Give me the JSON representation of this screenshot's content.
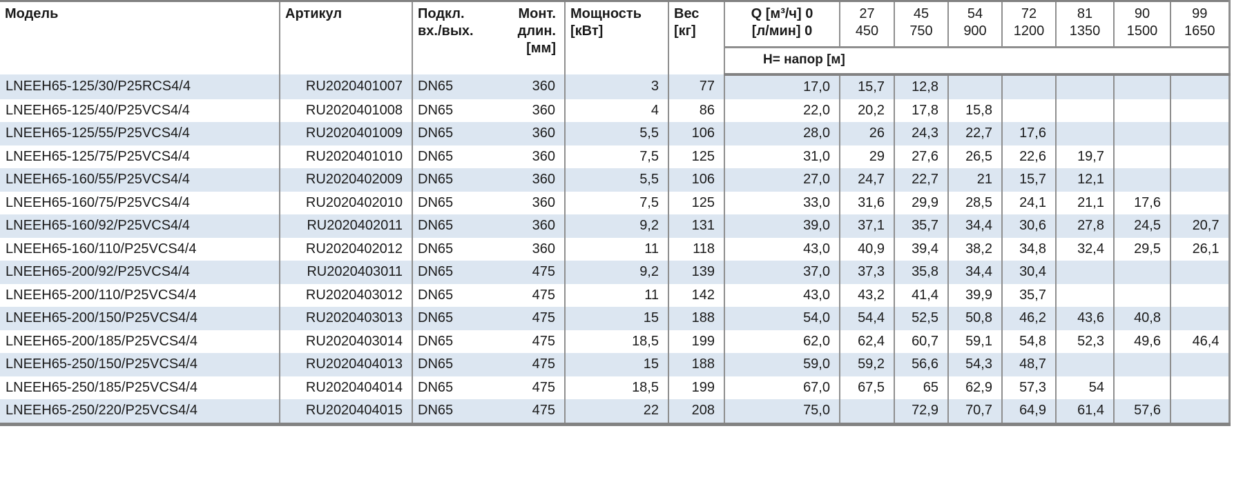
{
  "table": {
    "columns": {
      "model": "Модель",
      "article": "Артикул",
      "connection_line1": "Подкл.",
      "connection_line2": "вх./вых.",
      "mount_line1": "Монт.",
      "mount_line2": "длин.",
      "mount_line3": "[мм]",
      "power_line1": "Мощность",
      "power_line2": "[кВт]",
      "weight_line1": "Вес",
      "weight_line2": "[кг]",
      "q_line1": "Q [м³/ч] 0",
      "q_line2": "[л/мин] 0",
      "head_label": "Н= напор [м]"
    },
    "q_columns": [
      {
        "m3h": "27",
        "lmin": "450"
      },
      {
        "m3h": "45",
        "lmin": "750"
      },
      {
        "m3h": "54",
        "lmin": "900"
      },
      {
        "m3h": "72",
        "lmin": "1200"
      },
      {
        "m3h": "81",
        "lmin": "1350"
      },
      {
        "m3h": "90",
        "lmin": "1500"
      },
      {
        "m3h": "99",
        "lmin": "1650"
      }
    ],
    "rows": [
      {
        "model": "LNEEH65-125/30/P25RCS4/4",
        "article": "RU2020401007",
        "connection": "DN65",
        "mount_length": "360",
        "power": "3",
        "weight": "77",
        "heads": [
          "17,0",
          "15,7",
          "12,8",
          "",
          "",
          "",
          "",
          ""
        ]
      },
      {
        "model": "LNEEH65-125/40/P25VCS4/4",
        "article": "RU2020401008",
        "connection": "DN65",
        "mount_length": "360",
        "power": "4",
        "weight": "86",
        "heads": [
          "22,0",
          "20,2",
          "17,8",
          "15,8",
          "",
          "",
          "",
          ""
        ]
      },
      {
        "model": "LNEEH65-125/55/P25VCS4/4",
        "article": "RU2020401009",
        "connection": "DN65",
        "mount_length": "360",
        "power": "5,5",
        "weight": "106",
        "heads": [
          "28,0",
          "26",
          "24,3",
          "22,7",
          "17,6",
          "",
          "",
          ""
        ]
      },
      {
        "model": "LNEEH65-125/75/P25VCS4/4",
        "article": "RU2020401010",
        "connection": "DN65",
        "mount_length": "360",
        "power": "7,5",
        "weight": "125",
        "heads": [
          "31,0",
          "29",
          "27,6",
          "26,5",
          "22,6",
          "19,7",
          "",
          ""
        ]
      },
      {
        "model": "LNEEH65-160/55/P25VCS4/4",
        "article": "RU2020402009",
        "connection": "DN65",
        "mount_length": "360",
        "power": "5,5",
        "weight": "106",
        "heads": [
          "27,0",
          "24,7",
          "22,7",
          "21",
          "15,7",
          "12,1",
          "",
          ""
        ]
      },
      {
        "model": "LNEEH65-160/75/P25VCS4/4",
        "article": "RU2020402010",
        "connection": "DN65",
        "mount_length": "360",
        "power": "7,5",
        "weight": "125",
        "heads": [
          "33,0",
          "31,6",
          "29,9",
          "28,5",
          "24,1",
          "21,1",
          "17,6",
          ""
        ]
      },
      {
        "model": "LNEEH65-160/92/P25VCS4/4",
        "article": "RU2020402011",
        "connection": "DN65",
        "mount_length": "360",
        "power": "9,2",
        "weight": "131",
        "heads": [
          "39,0",
          "37,1",
          "35,7",
          "34,4",
          "30,6",
          "27,8",
          "24,5",
          "20,7"
        ]
      },
      {
        "model": "LNEEH65-160/110/P25VCS4/4",
        "article": "RU2020402012",
        "connection": "DN65",
        "mount_length": "360",
        "power": "11",
        "weight": "118",
        "heads": [
          "43,0",
          "40,9",
          "39,4",
          "38,2",
          "34,8",
          "32,4",
          "29,5",
          "26,1"
        ]
      },
      {
        "model": "LNEEH65-200/92/P25VCS4/4",
        "article": "RU2020403011",
        "connection": "DN65",
        "mount_length": "475",
        "power": "9,2",
        "weight": "139",
        "heads": [
          "37,0",
          "37,3",
          "35,8",
          "34,4",
          "30,4",
          "",
          "",
          ""
        ]
      },
      {
        "model": "LNEEH65-200/110/P25VCS4/4",
        "article": "RU2020403012",
        "connection": "DN65",
        "mount_length": "475",
        "power": "11",
        "weight": "142",
        "heads": [
          "43,0",
          "43,2",
          "41,4",
          "39,9",
          "35,7",
          "",
          "",
          ""
        ]
      },
      {
        "model": "LNEEH65-200/150/P25VCS4/4",
        "article": "RU2020403013",
        "connection": "DN65",
        "mount_length": "475",
        "power": "15",
        "weight": "188",
        "heads": [
          "54,0",
          "54,4",
          "52,5",
          "50,8",
          "46,2",
          "43,6",
          "40,8",
          ""
        ]
      },
      {
        "model": "LNEEH65-200/185/P25VCS4/4",
        "article": "RU2020403014",
        "connection": "DN65",
        "mount_length": "475",
        "power": "18,5",
        "weight": "199",
        "heads": [
          "62,0",
          "62,4",
          "60,7",
          "59,1",
          "54,8",
          "52,3",
          "49,6",
          "46,4"
        ]
      },
      {
        "model": "LNEEH65-250/150/P25VCS4/4",
        "article": "RU2020404013",
        "connection": "DN65",
        "mount_length": "475",
        "power": "15",
        "weight": "188",
        "heads": [
          "59,0",
          "59,2",
          "56,6",
          "54,3",
          "48,7",
          "",
          "",
          ""
        ]
      },
      {
        "model": "LNEEH65-250/185/P25VCS4/4",
        "article": "RU2020404014",
        "connection": "DN65",
        "mount_length": "475",
        "power": "18,5",
        "weight": "199",
        "heads": [
          "67,0",
          "67,5",
          "65",
          "62,9",
          "57,3",
          "54",
          "",
          ""
        ]
      },
      {
        "model": "LNEEH65-250/220/P25VCS4/4",
        "article": "RU2020404015",
        "connection": "DN65",
        "mount_length": "475",
        "power": "22",
        "weight": "208",
        "heads": [
          "75,0",
          "",
          "72,9",
          "70,7",
          "64,9",
          "61,4",
          "57,6",
          ""
        ]
      }
    ]
  },
  "colors": {
    "stripe_blue": "#dce6f1",
    "border_gray": "#8e8e8e",
    "thick_border_gray": "#828282",
    "text": "#1a1a1a"
  }
}
